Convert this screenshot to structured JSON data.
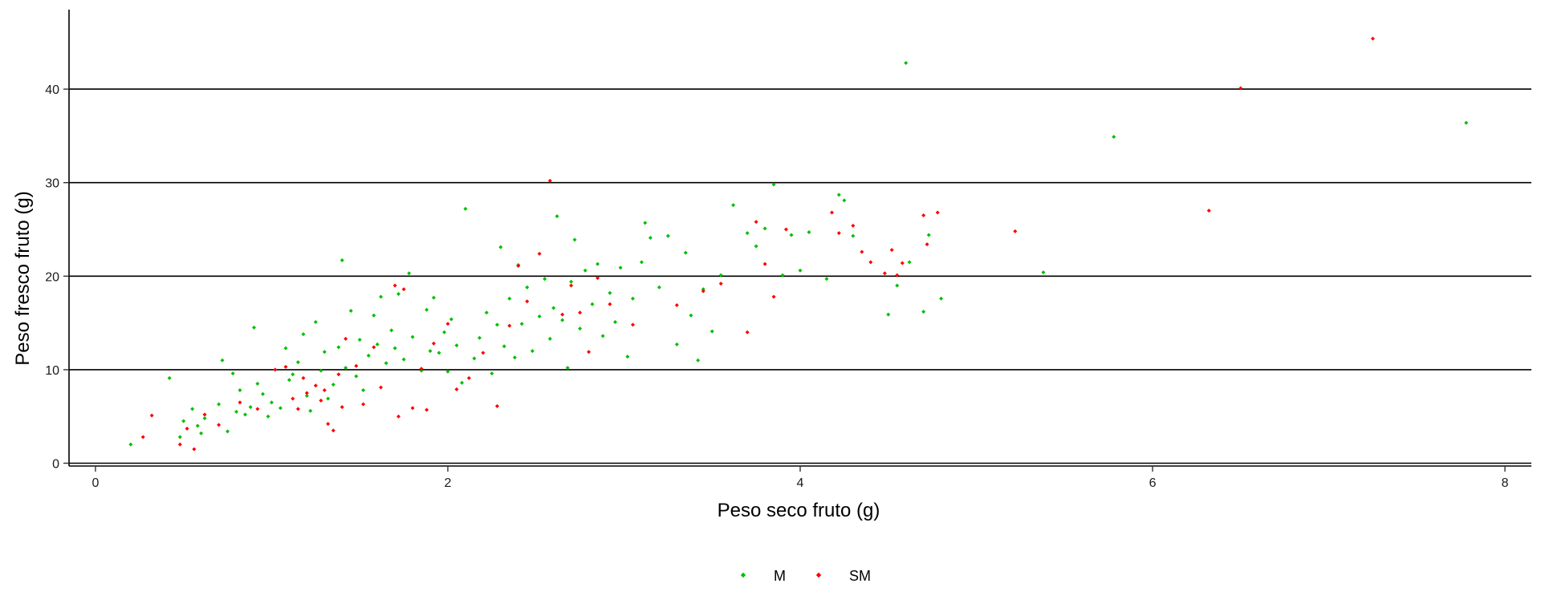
{
  "chart_data": {
    "type": "scatter",
    "title": "",
    "xlabel": "Peso seco fruto (g)",
    "ylabel": "Peso fresco fruto (g)",
    "xlim": [
      -0.15,
      8.15
    ],
    "ylim": [
      -0.3,
      48.5
    ],
    "x_ticks": [
      0,
      2,
      4,
      6,
      8
    ],
    "y_ticks": [
      0,
      10,
      20,
      30,
      40
    ],
    "x_tick_labels": [
      "0",
      "2",
      "4",
      "6",
      "8"
    ],
    "y_tick_labels": [
      "0",
      "10",
      "20",
      "30",
      "40"
    ],
    "grid": "horizontal major lines",
    "legend_position": "bottom-center",
    "series": [
      {
        "name": "M",
        "color": "#00c000",
        "points": [
          [
            0.2,
            2.0
          ],
          [
            0.42,
            9.1
          ],
          [
            0.48,
            2.8
          ],
          [
            0.5,
            4.5
          ],
          [
            0.55,
            5.8
          ],
          [
            0.58,
            4.0
          ],
          [
            0.6,
            3.2
          ],
          [
            0.62,
            4.8
          ],
          [
            0.7,
            6.3
          ],
          [
            0.72,
            11.0
          ],
          [
            0.75,
            3.4
          ],
          [
            0.78,
            9.6
          ],
          [
            0.8,
            5.5
          ],
          [
            0.82,
            7.8
          ],
          [
            0.85,
            5.2
          ],
          [
            0.88,
            6.0
          ],
          [
            0.9,
            14.5
          ],
          [
            0.92,
            8.5
          ],
          [
            0.95,
            7.4
          ],
          [
            0.98,
            5.0
          ],
          [
            1.0,
            6.5
          ],
          [
            1.05,
            5.9
          ],
          [
            1.08,
            12.3
          ],
          [
            1.1,
            8.9
          ],
          [
            1.12,
            9.5
          ],
          [
            1.15,
            10.8
          ],
          [
            1.18,
            13.8
          ],
          [
            1.2,
            7.2
          ],
          [
            1.22,
            5.6
          ],
          [
            1.25,
            15.1
          ],
          [
            1.28,
            9.9
          ],
          [
            1.3,
            11.9
          ],
          [
            1.32,
            6.9
          ],
          [
            1.35,
            8.4
          ],
          [
            1.38,
            12.4
          ],
          [
            1.4,
            21.7
          ],
          [
            1.42,
            10.2
          ],
          [
            1.45,
            16.3
          ],
          [
            1.48,
            9.3
          ],
          [
            1.5,
            13.2
          ],
          [
            1.52,
            7.8
          ],
          [
            1.55,
            11.5
          ],
          [
            1.58,
            15.8
          ],
          [
            1.6,
            12.7
          ],
          [
            1.62,
            17.8
          ],
          [
            1.65,
            10.7
          ],
          [
            1.68,
            14.2
          ],
          [
            1.7,
            12.3
          ],
          [
            1.72,
            18.1
          ],
          [
            1.75,
            11.1
          ],
          [
            1.78,
            20.3
          ],
          [
            1.8,
            13.5
          ],
          [
            1.85,
            9.9
          ],
          [
            1.88,
            16.4
          ],
          [
            1.9,
            12.0
          ],
          [
            1.92,
            17.7
          ],
          [
            1.95,
            11.8
          ],
          [
            1.98,
            14.0
          ],
          [
            2.0,
            9.8
          ],
          [
            2.02,
            15.4
          ],
          [
            2.05,
            12.6
          ],
          [
            2.08,
            8.6
          ],
          [
            2.1,
            27.2
          ],
          [
            2.15,
            11.2
          ],
          [
            2.18,
            13.4
          ],
          [
            2.22,
            16.1
          ],
          [
            2.25,
            9.6
          ],
          [
            2.28,
            14.8
          ],
          [
            2.3,
            23.1
          ],
          [
            2.32,
            12.5
          ],
          [
            2.35,
            17.6
          ],
          [
            2.38,
            11.3
          ],
          [
            2.4,
            21.2
          ],
          [
            2.42,
            14.9
          ],
          [
            2.45,
            18.8
          ],
          [
            2.48,
            12.0
          ],
          [
            2.52,
            15.7
          ],
          [
            2.55,
            19.7
          ],
          [
            2.58,
            13.3
          ],
          [
            2.6,
            16.6
          ],
          [
            2.62,
            26.4
          ],
          [
            2.65,
            15.3
          ],
          [
            2.68,
            10.2
          ],
          [
            2.7,
            19.4
          ],
          [
            2.72,
            23.9
          ],
          [
            2.75,
            14.4
          ],
          [
            2.78,
            20.6
          ],
          [
            2.82,
            17.0
          ],
          [
            2.85,
            21.3
          ],
          [
            2.88,
            13.6
          ],
          [
            2.92,
            18.2
          ],
          [
            2.95,
            15.1
          ],
          [
            2.98,
            20.9
          ],
          [
            3.02,
            11.4
          ],
          [
            3.05,
            17.6
          ],
          [
            3.1,
            21.5
          ],
          [
            3.12,
            25.7
          ],
          [
            3.15,
            24.1
          ],
          [
            3.2,
            18.8
          ],
          [
            3.25,
            24.3
          ],
          [
            3.3,
            12.7
          ],
          [
            3.35,
            22.5
          ],
          [
            3.38,
            15.8
          ],
          [
            3.42,
            11.0
          ],
          [
            3.45,
            18.6
          ],
          [
            3.5,
            14.1
          ],
          [
            3.55,
            20.1
          ],
          [
            3.62,
            27.6
          ],
          [
            3.7,
            24.6
          ],
          [
            3.75,
            23.2
          ],
          [
            3.8,
            25.1
          ],
          [
            3.85,
            29.8
          ],
          [
            3.9,
            20.1
          ],
          [
            3.95,
            24.4
          ],
          [
            4.0,
            20.6
          ],
          [
            4.05,
            24.7
          ],
          [
            4.15,
            19.7
          ],
          [
            4.22,
            28.7
          ],
          [
            4.25,
            28.1
          ],
          [
            4.3,
            24.3
          ],
          [
            4.5,
            15.9
          ],
          [
            4.55,
            19.0
          ],
          [
            4.6,
            42.8
          ],
          [
            4.62,
            21.5
          ],
          [
            4.7,
            16.2
          ],
          [
            4.73,
            24.4
          ],
          [
            4.8,
            17.6
          ],
          [
            5.38,
            20.4
          ],
          [
            5.78,
            34.9
          ],
          [
            7.78,
            36.4
          ]
        ]
      },
      {
        "name": "SM",
        "color": "#ff0000",
        "points": [
          [
            0.27,
            2.8
          ],
          [
            0.32,
            5.1
          ],
          [
            0.48,
            2.0
          ],
          [
            0.52,
            3.7
          ],
          [
            0.56,
            1.5
          ],
          [
            0.62,
            5.2
          ],
          [
            0.7,
            4.1
          ],
          [
            0.82,
            6.5
          ],
          [
            0.92,
            5.8
          ],
          [
            1.02,
            10.0
          ],
          [
            1.08,
            10.3
          ],
          [
            1.12,
            6.9
          ],
          [
            1.15,
            5.8
          ],
          [
            1.18,
            9.1
          ],
          [
            1.2,
            7.5
          ],
          [
            1.25,
            8.3
          ],
          [
            1.28,
            6.7
          ],
          [
            1.3,
            7.8
          ],
          [
            1.32,
            4.2
          ],
          [
            1.35,
            3.5
          ],
          [
            1.38,
            9.5
          ],
          [
            1.4,
            6.0
          ],
          [
            1.42,
            13.3
          ],
          [
            1.48,
            10.4
          ],
          [
            1.52,
            6.3
          ],
          [
            1.58,
            12.4
          ],
          [
            1.62,
            8.1
          ],
          [
            1.7,
            19.0
          ],
          [
            1.72,
            5.0
          ],
          [
            1.75,
            18.6
          ],
          [
            1.8,
            5.9
          ],
          [
            1.85,
            10.1
          ],
          [
            1.88,
            5.7
          ],
          [
            1.92,
            12.8
          ],
          [
            2.0,
            14.9
          ],
          [
            2.05,
            7.9
          ],
          [
            2.12,
            9.1
          ],
          [
            2.2,
            11.8
          ],
          [
            2.28,
            6.1
          ],
          [
            2.35,
            14.7
          ],
          [
            2.4,
            21.1
          ],
          [
            2.45,
            17.3
          ],
          [
            2.52,
            22.4
          ],
          [
            2.58,
            30.2
          ],
          [
            2.65,
            15.9
          ],
          [
            2.7,
            19.0
          ],
          [
            2.75,
            16.1
          ],
          [
            2.8,
            11.9
          ],
          [
            2.85,
            19.8
          ],
          [
            2.92,
            17.0
          ],
          [
            3.05,
            14.8
          ],
          [
            3.3,
            16.9
          ],
          [
            3.45,
            18.4
          ],
          [
            3.55,
            19.2
          ],
          [
            3.7,
            14.0
          ],
          [
            3.75,
            25.8
          ],
          [
            3.8,
            21.3
          ],
          [
            3.85,
            17.8
          ],
          [
            3.92,
            25.0
          ],
          [
            4.18,
            26.8
          ],
          [
            4.22,
            24.6
          ],
          [
            4.3,
            25.4
          ],
          [
            4.35,
            22.6
          ],
          [
            4.4,
            21.5
          ],
          [
            4.48,
            20.3
          ],
          [
            4.52,
            22.8
          ],
          [
            4.55,
            20.1
          ],
          [
            4.58,
            21.4
          ],
          [
            4.7,
            26.5
          ],
          [
            4.72,
            23.4
          ],
          [
            4.78,
            26.8
          ],
          [
            5.22,
            24.8
          ],
          [
            6.32,
            27.0
          ],
          [
            6.5,
            40.1
          ],
          [
            7.25,
            45.4
          ]
        ]
      }
    ]
  }
}
